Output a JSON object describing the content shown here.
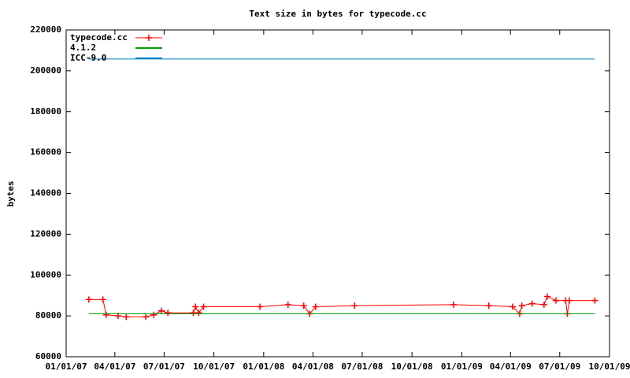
{
  "chart_data": {
    "type": "line",
    "title": "Text size in bytes for typecode.cc",
    "y_label": "bytes",
    "xlim": [
      "2007-01-01",
      "2009-10-01"
    ],
    "xticks": [
      {
        "value": "2007-01-01",
        "label": "01/01/07"
      },
      {
        "value": "2007-04-01",
        "label": "04/01/07"
      },
      {
        "value": "2007-07-01",
        "label": "07/01/07"
      },
      {
        "value": "2007-10-01",
        "label": "10/01/07"
      },
      {
        "value": "2008-01-01",
        "label": "01/01/08"
      },
      {
        "value": "2008-04-01",
        "label": "04/01/08"
      },
      {
        "value": "2008-07-01",
        "label": "07/01/08"
      },
      {
        "value": "2008-10-01",
        "label": "10/01/08"
      },
      {
        "value": "2009-01-01",
        "label": "01/01/09"
      },
      {
        "value": "2009-04-01",
        "label": "04/01/09"
      },
      {
        "value": "2009-07-01",
        "label": "07/01/09"
      },
      {
        "value": "2009-10-01",
        "label": "10/01/09"
      }
    ],
    "ylim": [
      60000,
      220000
    ],
    "yticks": [
      60000,
      80000,
      100000,
      120000,
      140000,
      160000,
      180000,
      200000,
      220000
    ],
    "grid": false,
    "legend": "upper left",
    "series": [
      {
        "name": "typecode.cc",
        "color": "#ff0000",
        "marker": "+",
        "x": [
          "2007-02-12",
          "2007-03-10",
          "2007-03-16",
          "2007-04-07",
          "2007-04-22",
          "2007-05-28",
          "2007-06-12",
          "2007-06-26",
          "2007-07-08",
          "2007-08-24",
          "2007-08-28",
          "2007-09-03",
          "2007-09-12",
          "2007-12-25",
          "2008-02-15",
          "2008-03-15",
          "2008-03-26",
          "2008-04-06",
          "2008-06-17",
          "2008-12-17",
          "2009-02-20",
          "2009-04-05",
          "2009-04-18",
          "2009-04-22",
          "2009-05-11",
          "2009-06-02",
          "2009-06-08",
          "2009-06-24",
          "2009-07-12",
          "2009-07-15",
          "2009-07-19",
          "2009-09-04"
        ],
        "values": [
          88000,
          88000,
          80500,
          80000,
          79500,
          79500,
          80500,
          82500,
          81500,
          81500,
          84500,
          81500,
          84500,
          84500,
          85500,
          85000,
          81000,
          84500,
          85000,
          85500,
          85000,
          84500,
          81000,
          85000,
          86000,
          85500,
          89500,
          87500,
          87500,
          81000,
          87500,
          87500
        ]
      },
      {
        "name": "4.1.2",
        "color": "#00a000",
        "marker": null,
        "x": [
          "2007-02-12",
          "2009-09-04"
        ],
        "values": [
          81000,
          81000
        ]
      },
      {
        "name": "ICC-9.0",
        "color": "#0080c0",
        "marker": null,
        "x": [
          "2007-02-12",
          "2009-09-04"
        ],
        "values": [
          205800,
          205800
        ]
      }
    ]
  }
}
